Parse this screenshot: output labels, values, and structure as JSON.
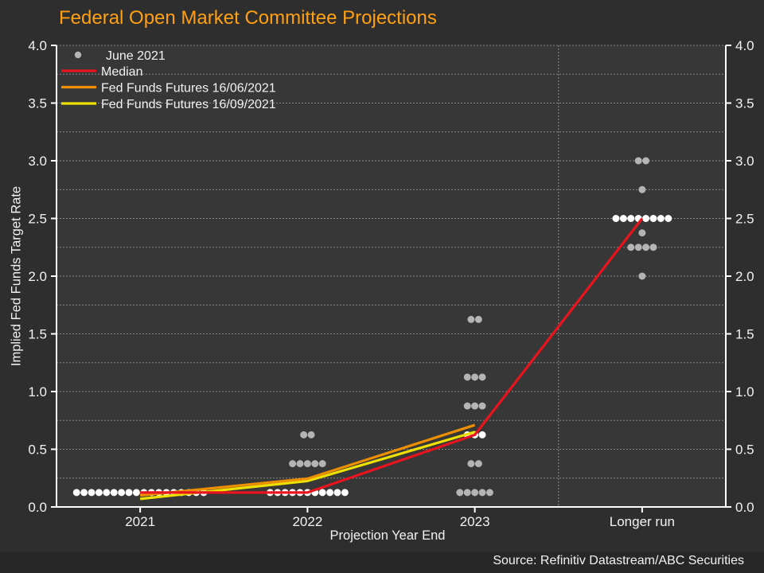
{
  "page": {
    "title": "Federal Open Market Committee Projections",
    "source": "Source: Refinitiv Datastream/ABC Securities"
  },
  "colors": {
    "background": "#2e2e2e",
    "plot_background": "#373737",
    "bottom_strip": "#272727",
    "title": "#ffa012",
    "text": "#f2f2f2",
    "grid": "#9c9c9c",
    "axis": "#ffffff",
    "dot": "#b4b4b4",
    "dot_highlight": "#ffffff",
    "median_line": "#e8141e",
    "futures_june_line": "#ee8f00",
    "futures_sept_line": "#eee000"
  },
  "chart_data": {
    "type": "scatter",
    "title": "Federal Open Market Committee Projections",
    "xlabel": "Projection Year End",
    "ylabel": "Implied Fed Funds Target Rate",
    "categories": [
      "2021",
      "2022",
      "2023",
      "Longer run"
    ],
    "ylim": [
      0.0,
      4.0
    ],
    "yticks": [
      "0.0",
      "0.5",
      "1.0",
      "1.5",
      "2.0",
      "2.5",
      "3.0",
      "3.5",
      "4.0"
    ],
    "grid": "horizontal dashed every 0.25; dashed vertical separator before Longer run; y labels on both sides",
    "legend_position": "top-left inside plot",
    "legend": [
      {
        "label": "June 2021",
        "type": "dot",
        "color": "#b4b4b4"
      },
      {
        "label": "Median",
        "type": "line",
        "color": "#e8141e"
      },
      {
        "label": "Fed Funds Futures 16/06/2021",
        "type": "line",
        "color": "#ee8f00"
      },
      {
        "label": "Fed Funds Futures 16/09/2021",
        "type": "line",
        "color": "#eee000"
      }
    ],
    "dot_plot": {
      "series": "June 2021",
      "note": "count = number of FOMC participant dots at that implied rate; highlight rows (the median rate) are drawn white",
      "points": [
        {
          "category": "2021",
          "value": 0.125,
          "count": 18,
          "highlight": true
        },
        {
          "category": "2022",
          "value": 0.125,
          "count": 11,
          "highlight": true
        },
        {
          "category": "2022",
          "value": 0.375,
          "count": 5
        },
        {
          "category": "2022",
          "value": 0.625,
          "count": 2
        },
        {
          "category": "2023",
          "value": 0.125,
          "count": 5
        },
        {
          "category": "2023",
          "value": 0.375,
          "count": 2
        },
        {
          "category": "2023",
          "value": 0.625,
          "count": 3,
          "highlight": true
        },
        {
          "category": "2023",
          "value": 0.875,
          "count": 3
        },
        {
          "category": "2023",
          "value": 1.125,
          "count": 3
        },
        {
          "category": "2023",
          "value": 1.625,
          "count": 2
        },
        {
          "category": "Longer run",
          "value": 2.0,
          "count": 1
        },
        {
          "category": "Longer run",
          "value": 2.25,
          "count": 4
        },
        {
          "category": "Longer run",
          "value": 2.375,
          "count": 1
        },
        {
          "category": "Longer run",
          "value": 2.5,
          "count": 8,
          "highlight": true
        },
        {
          "category": "Longer run",
          "value": 2.75,
          "count": 1
        },
        {
          "category": "Longer run",
          "value": 3.0,
          "count": 2
        }
      ]
    },
    "lines": [
      {
        "name": "Fed Funds Futures 16/09/2021",
        "color": "#eee000",
        "x": [
          "2021",
          "2022",
          "2023"
        ],
        "y": [
          0.07,
          0.225,
          0.65
        ]
      },
      {
        "name": "Fed Funds Futures 16/06/2021",
        "color": "#ee8f00",
        "x": [
          "2021",
          "2022",
          "2023"
        ],
        "y": [
          0.1,
          0.245,
          0.71
        ]
      },
      {
        "name": "Median",
        "color": "#e8141e",
        "x": [
          "2021",
          "2022",
          "2023",
          "Longer run"
        ],
        "y": [
          0.125,
          0.125,
          0.625,
          2.5
        ]
      }
    ]
  }
}
